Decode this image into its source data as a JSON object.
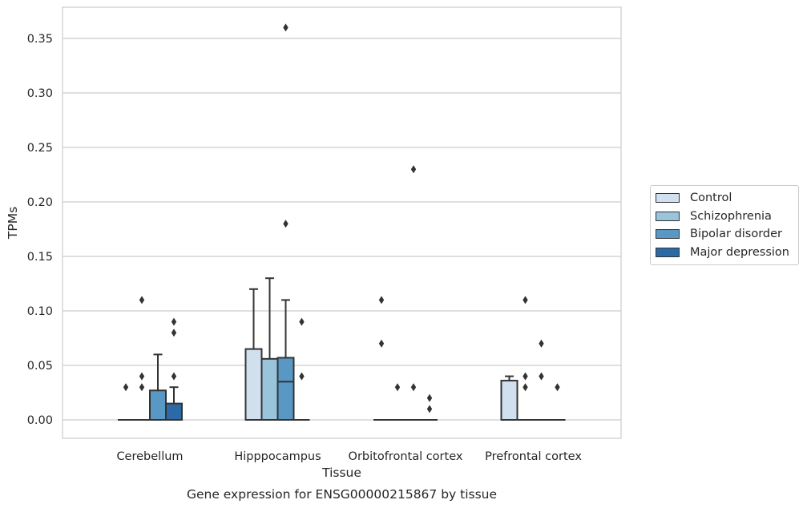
{
  "chart_data": {
    "type": "box",
    "title": "",
    "caption": "Gene expression for ENSG00000215867 by tissue",
    "xlabel": "Tissue",
    "ylabel": "TPMs",
    "ylim": [
      -0.017,
      0.378
    ],
    "yticks": [
      0.0,
      0.05,
      0.1,
      0.15,
      0.2,
      0.25,
      0.3,
      0.35
    ],
    "ytick_labels": [
      "0.00",
      "0.05",
      "0.10",
      "0.15",
      "0.20",
      "0.25",
      "0.30",
      "0.35"
    ],
    "grid": "horizontal",
    "legend_position": "right",
    "categories": [
      "Cerebellum",
      "Hipppocampus",
      "Orbitofrontal cortex",
      "Prefrontal cortex"
    ],
    "series": [
      {
        "name": "Control",
        "color": "#d1e0ee",
        "boxes": [
          {
            "q1": 0.0,
            "median": 0.0,
            "q3": 0.0,
            "whisker_low": 0.0,
            "whisker_high": 0.0,
            "outliers": [
              0.03
            ]
          },
          {
            "q1": 0.0,
            "median": 0.0,
            "q3": 0.065,
            "whisker_low": 0.0,
            "whisker_high": 0.12,
            "outliers": []
          },
          {
            "q1": 0.0,
            "median": 0.0,
            "q3": 0.0,
            "whisker_low": 0.0,
            "whisker_high": 0.0,
            "outliers": [
              0.11,
              0.07
            ]
          },
          {
            "q1": 0.0,
            "median": 0.0,
            "q3": 0.036,
            "whisker_low": 0.0,
            "whisker_high": 0.04,
            "outliers": []
          }
        ]
      },
      {
        "name": "Schizophrenia",
        "color": "#9ac3dc",
        "boxes": [
          {
            "q1": 0.0,
            "median": 0.0,
            "q3": 0.0,
            "whisker_low": 0.0,
            "whisker_high": 0.0,
            "outliers": [
              0.11,
              0.04,
              0.03
            ]
          },
          {
            "q1": 0.0,
            "median": 0.0,
            "q3": 0.056,
            "whisker_low": 0.0,
            "whisker_high": 0.13,
            "outliers": []
          },
          {
            "q1": 0.0,
            "median": 0.0,
            "q3": 0.0,
            "whisker_low": 0.0,
            "whisker_high": 0.0,
            "outliers": [
              0.03
            ]
          },
          {
            "q1": 0.0,
            "median": 0.0,
            "q3": 0.0,
            "whisker_low": 0.0,
            "whisker_high": 0.0,
            "outliers": [
              0.11,
              0.04,
              0.03
            ]
          }
        ]
      },
      {
        "name": "Bipolar disorder",
        "color": "#5998c5",
        "boxes": [
          {
            "q1": 0.0,
            "median": 0.0,
            "q3": 0.027,
            "whisker_low": 0.0,
            "whisker_high": 0.06,
            "outliers": []
          },
          {
            "q1": 0.0,
            "median": 0.035,
            "q3": 0.057,
            "whisker_low": 0.0,
            "whisker_high": 0.11,
            "outliers": [
              0.36,
              0.18
            ]
          },
          {
            "q1": 0.0,
            "median": 0.0,
            "q3": 0.0,
            "whisker_low": 0.0,
            "whisker_high": 0.0,
            "outliers": [
              0.23,
              0.03
            ]
          },
          {
            "q1": 0.0,
            "median": 0.0,
            "q3": 0.0,
            "whisker_low": 0.0,
            "whisker_high": 0.0,
            "outliers": [
              0.07,
              0.04
            ]
          }
        ]
      },
      {
        "name": "Major depression",
        "color": "#2c6aa6",
        "boxes": [
          {
            "q1": 0.0,
            "median": 0.0,
            "q3": 0.015,
            "whisker_low": 0.0,
            "whisker_high": 0.03,
            "outliers": [
              0.09,
              0.08,
              0.04
            ]
          },
          {
            "q1": 0.0,
            "median": 0.0,
            "q3": 0.0,
            "whisker_low": 0.0,
            "whisker_high": 0.0,
            "outliers": [
              0.09,
              0.04
            ]
          },
          {
            "q1": 0.0,
            "median": 0.0,
            "q3": 0.0,
            "whisker_low": 0.0,
            "whisker_high": 0.0,
            "outliers": [
              0.02,
              0.01
            ]
          },
          {
            "q1": 0.0,
            "median": 0.0,
            "q3": 0.0,
            "whisker_low": 0.0,
            "whisker_high": 0.0,
            "outliers": [
              0.03
            ]
          }
        ]
      }
    ]
  }
}
